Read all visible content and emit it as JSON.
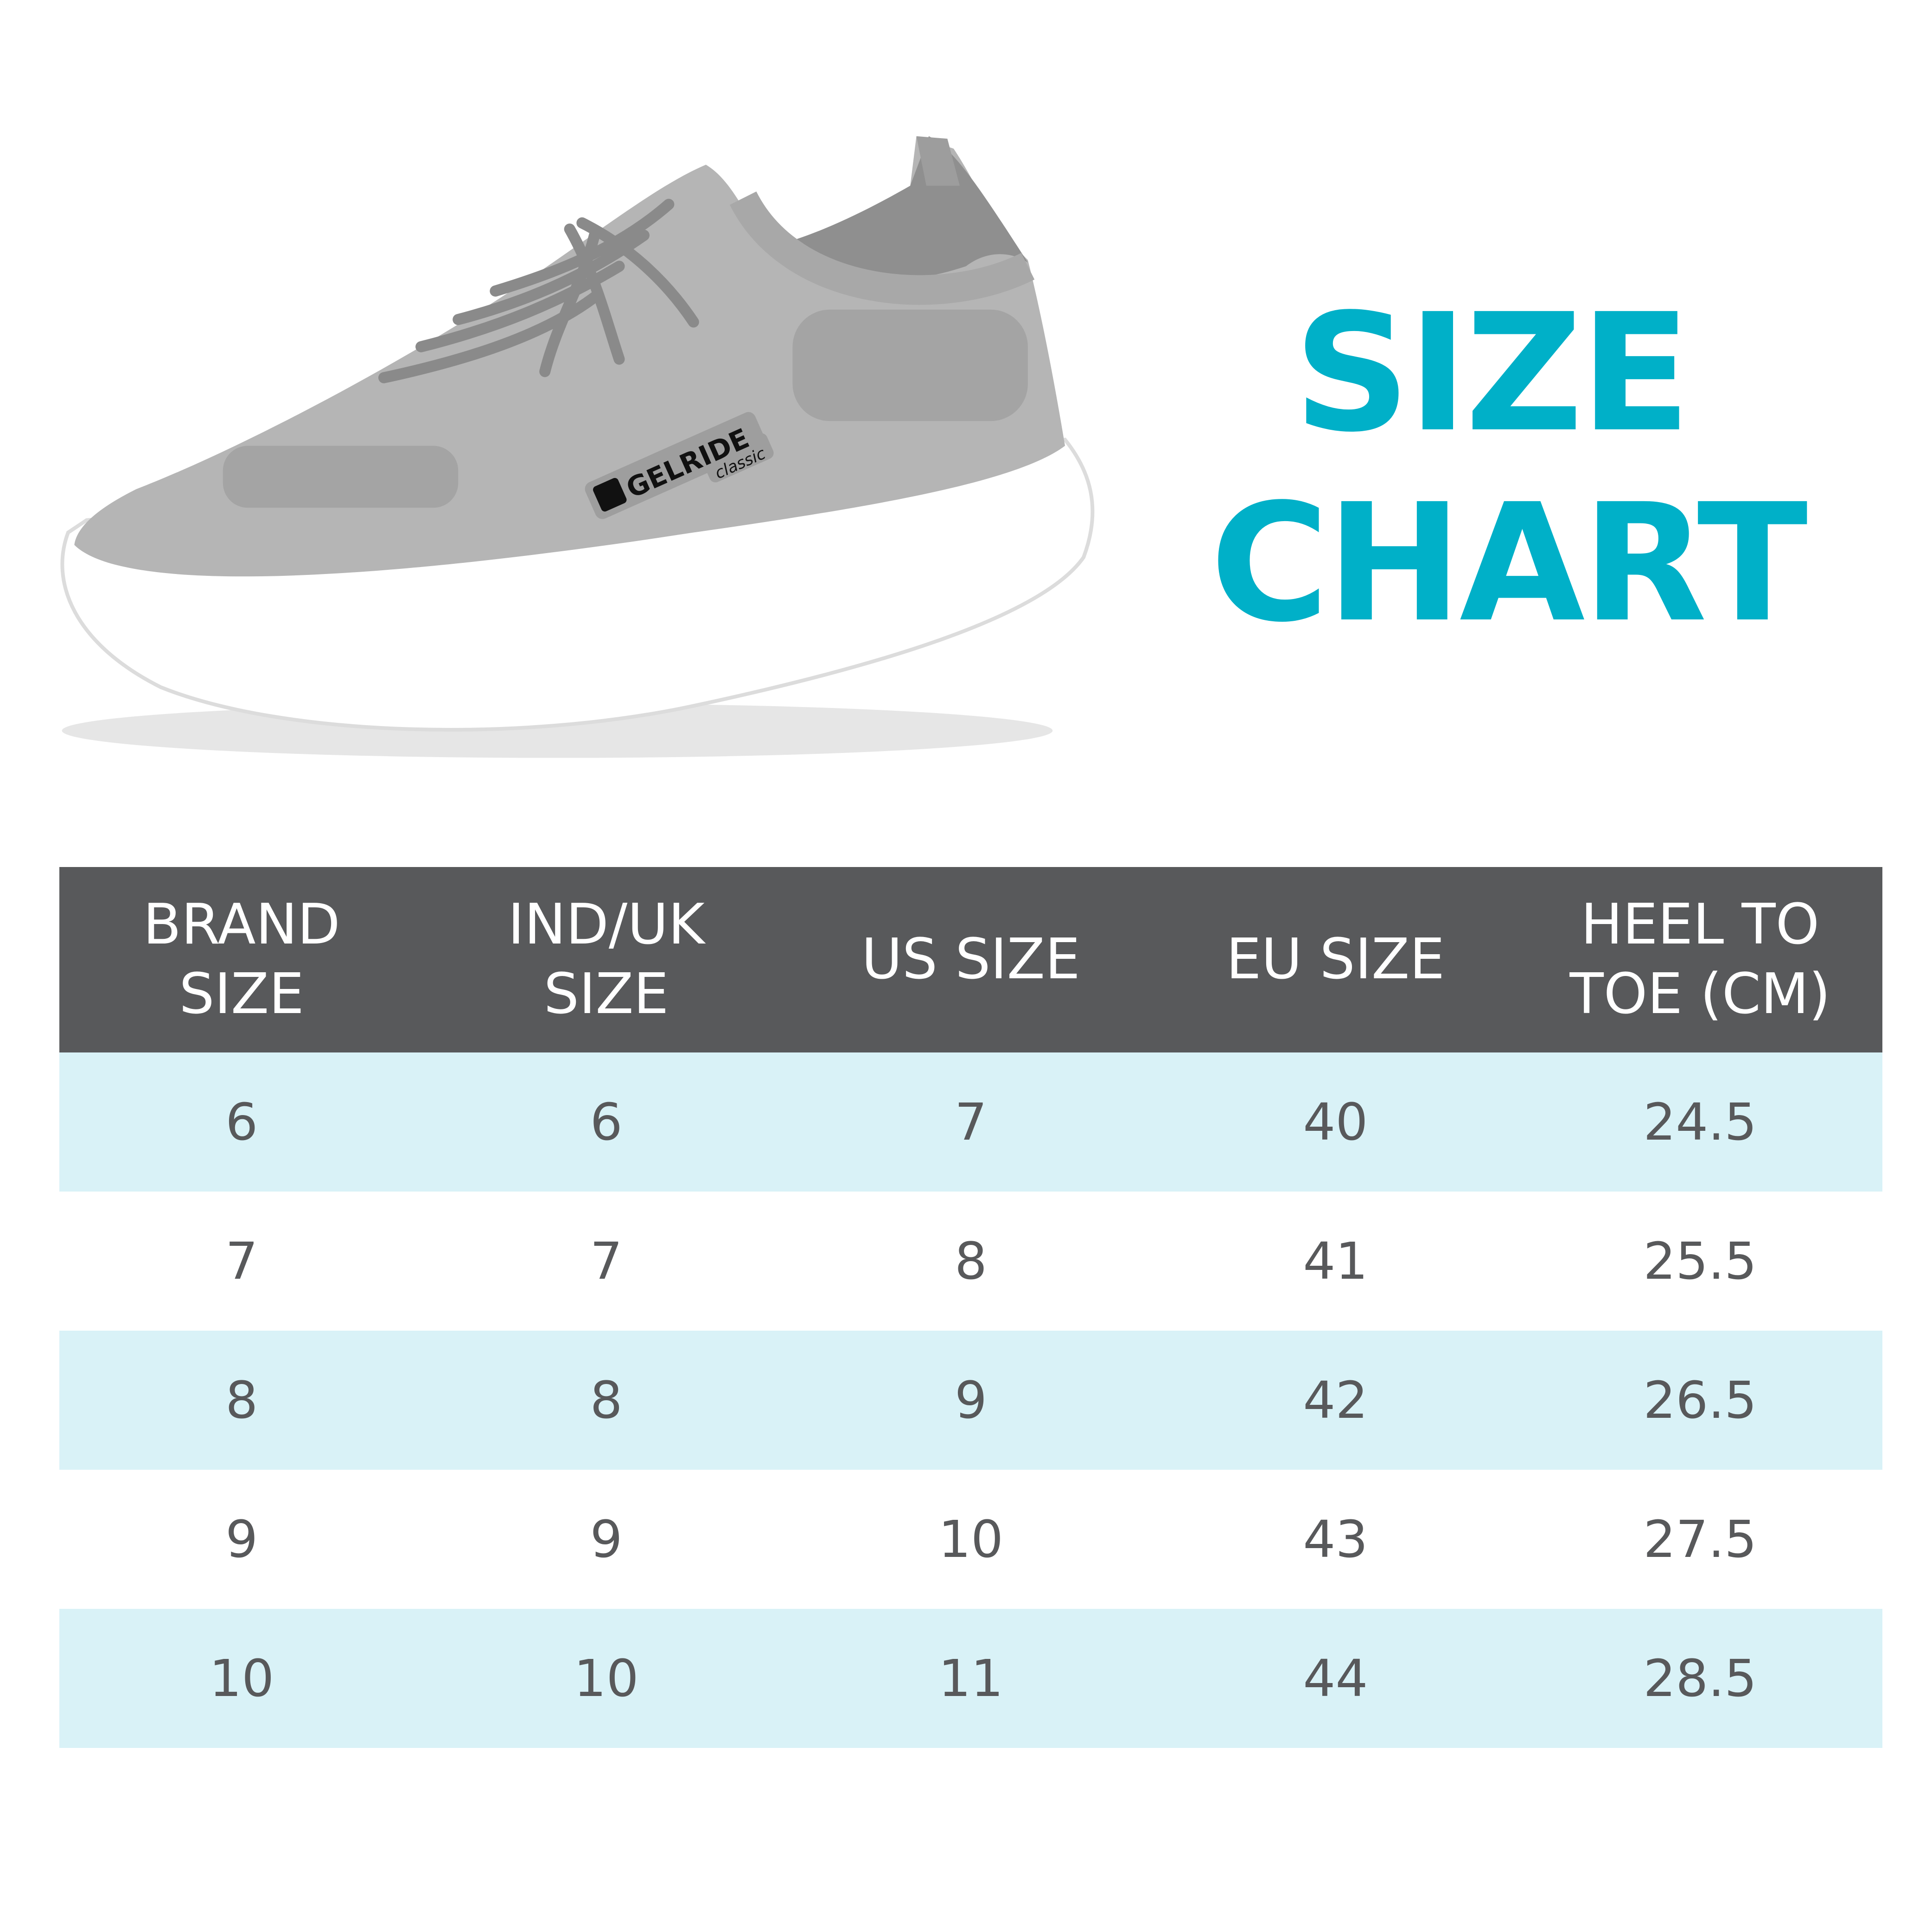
{
  "title": {
    "line1": "SIZE",
    "line2": "CHART"
  },
  "product_logo": {
    "brand": "GELRIDE",
    "sub": "classic"
  },
  "colors": {
    "accent": "#00b0c8",
    "header_bg": "#58595b",
    "row_alt_bg": "#d9f2f7",
    "text": "#58595b",
    "shoe": "#b5b5b5",
    "sole": "#ffffff"
  },
  "table": {
    "headers": [
      "BRAND\nSIZE",
      "IND/UK\nSIZE",
      "US SIZE",
      "EU SIZE",
      "HEEL TO\nTOE (CM)"
    ],
    "rows": [
      [
        "6",
        "6",
        "7",
        "40",
        "24.5"
      ],
      [
        "7",
        "7",
        "8",
        "41",
        "25.5"
      ],
      [
        "8",
        "8",
        "9",
        "42",
        "26.5"
      ],
      [
        "9",
        "9",
        "10",
        "43",
        "27.5"
      ],
      [
        "10",
        "10",
        "11",
        "44",
        "28.5"
      ]
    ]
  }
}
